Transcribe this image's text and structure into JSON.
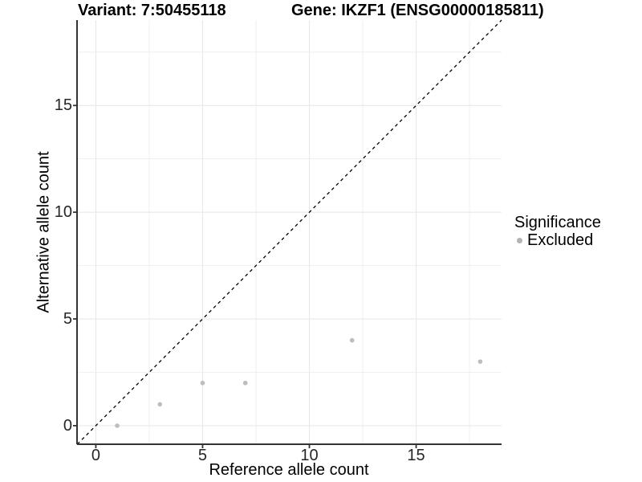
{
  "titles": {
    "variant": "Variant: 7:50455118",
    "gene": "Gene: IKZF1 (ENSG00000185811)"
  },
  "axes": {
    "x_label": "Reference allele count",
    "y_label": "Alternative allele count"
  },
  "legend": {
    "title": "Significance",
    "items": [
      {
        "label": "Excluded",
        "color": "#b3b3b3"
      }
    ]
  },
  "colors": {
    "grid": "#e8e8e8",
    "axis": "#333333",
    "tick_text": "#262626",
    "point": "#bdbdbd",
    "reference_line": "#000000",
    "background": "#ffffff"
  },
  "chart_data": {
    "type": "scatter",
    "title": "Variant: 7:50455118 | Gene: IKZF1 (ENSG00000185811)",
    "xlabel": "Reference allele count",
    "ylabel": "Alternative allele count",
    "xlim": [
      -0.88,
      19.0
    ],
    "ylim": [
      -0.87,
      19.0
    ],
    "x_ticks": [
      0,
      5,
      10,
      15
    ],
    "y_ticks": [
      0,
      5,
      10,
      15
    ],
    "x_minor_gridlines": [
      2.5,
      7.5,
      12.5,
      17.5
    ],
    "y_minor_gridlines": [
      2.5,
      7.5,
      12.5,
      17.5
    ],
    "grid": "major-and-minor",
    "legend_position": "right-middle",
    "series": [
      {
        "name": "Excluded",
        "marker": "circle",
        "color": "#bdbdbd",
        "points": [
          [
            1,
            0
          ],
          [
            3,
            1
          ],
          [
            5,
            2
          ],
          [
            7,
            2
          ],
          [
            12,
            4
          ],
          [
            18,
            3
          ]
        ]
      }
    ],
    "reference_line": {
      "equation": "y = x",
      "style": "dashed",
      "color": "#000000"
    }
  }
}
